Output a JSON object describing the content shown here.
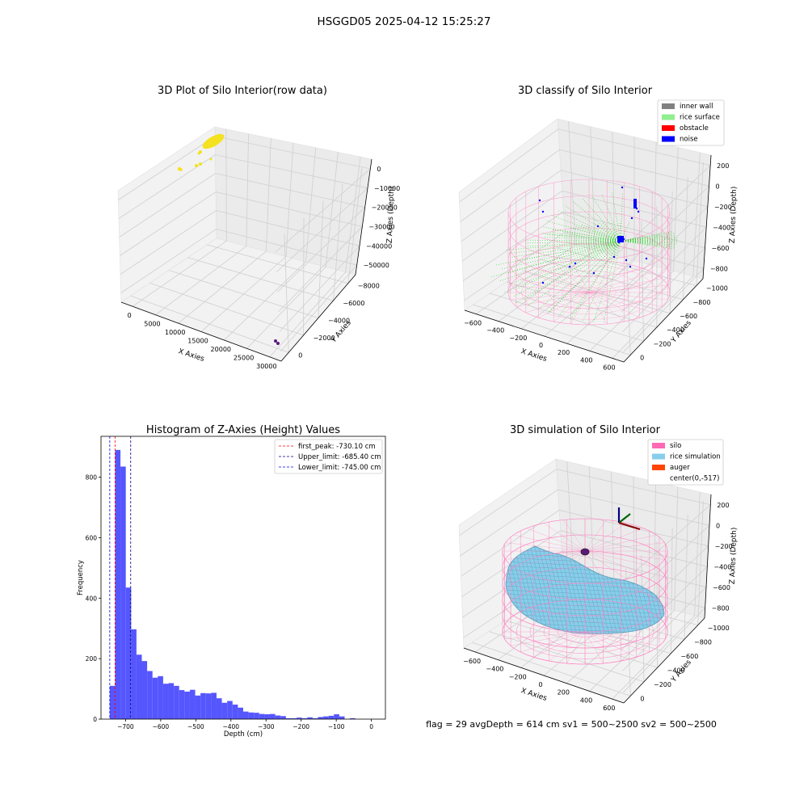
{
  "suptitle": "HSGGD05 2025-04-12 15:25:27",
  "chart_data": [
    {
      "type": "scatter",
      "title": "3D Plot of Silo Interior(row data)",
      "xlabel": "X Axies",
      "ylabel": "Y Axies",
      "zlabel": "Z Axies (Depth)",
      "x_ticks": [
        "0",
        "5000",
        "10000",
        "15000",
        "20000",
        "25000",
        "30000"
      ],
      "y_ticks": [
        "0",
        "−2000",
        "−4000",
        "−6000",
        "−8000"
      ],
      "z_ticks": [
        "0",
        "−10000",
        "−20000",
        "−30000",
        "−40000",
        "−50000"
      ],
      "colors": {
        "main": "#f4e11f",
        "outlier": "#5b1a7a"
      }
    },
    {
      "type": "scatter",
      "title": "3D classify of Silo Interior",
      "xlabel": "X Axies",
      "ylabel": "Y Axies",
      "zlabel": "Z Axies (Depth)",
      "x_ticks": [
        "−600",
        "−400",
        "−200",
        "0",
        "200",
        "400",
        "600"
      ],
      "y_ticks": [
        "0",
        "−200",
        "−400",
        "−600",
        "−800",
        "−1000"
      ],
      "z_ticks": [
        "200",
        "0",
        "−200",
        "−400",
        "−600",
        "−800"
      ],
      "legend": [
        {
          "label": "inner wall",
          "color": "#808080"
        },
        {
          "label": "rice surface",
          "color": "#90ee90"
        },
        {
          "label": "obstacle",
          "color": "#ff0000"
        },
        {
          "label": "noise",
          "color": "#0000ff"
        }
      ]
    },
    {
      "type": "bar",
      "title": "Histogram of Z-Axies (Height) Values",
      "xlabel": "Depth (cm)",
      "ylabel": "Frequency",
      "xlim": [
        -770,
        40
      ],
      "ylim": [
        0,
        935
      ],
      "x_ticks": [
        -700,
        -600,
        -500,
        -400,
        -300,
        -200,
        -100,
        0
      ],
      "x_tick_labels": [
        "−700",
        "−600",
        "−500",
        "−400",
        "−300",
        "−200",
        "−100",
        "0"
      ],
      "y_ticks": [
        0,
        200,
        400,
        600,
        800
      ],
      "bin_start": -745,
      "bin_width": 15.2,
      "values": [
        110,
        890,
        835,
        435,
        297,
        213,
        192,
        159,
        137,
        142,
        117,
        119,
        110,
        96,
        91,
        97,
        78,
        86,
        85,
        87,
        69,
        54,
        60,
        48,
        38,
        25,
        22,
        21,
        17,
        16,
        17,
        12,
        10,
        3,
        3,
        5,
        3,
        6,
        3,
        7,
        9,
        11,
        16,
        9,
        0,
        3
      ],
      "bar_color": "#4d4dff",
      "vlines": [
        {
          "label": "first_peak: -730.10 cm",
          "x": -730.1,
          "color": "#ff0000"
        },
        {
          "label": "Upper_limit: -685.40 cm",
          "x": -685.4,
          "color": "#000080"
        },
        {
          "label": "Lower_limit: -745.00 cm",
          "x": -745.0,
          "color": "#0000ff"
        }
      ]
    },
    {
      "type": "surface",
      "title": "3D simulation of Silo Interior",
      "xlabel": "X Axies",
      "ylabel": "Y Axies",
      "zlabel": "Z Axies (Depth)",
      "x_ticks": [
        "−600",
        "−400",
        "−200",
        "0",
        "200",
        "400",
        "600"
      ],
      "y_ticks": [
        "0",
        "−200",
        "−400",
        "−600",
        "−800",
        "−1000"
      ],
      "z_ticks": [
        "200",
        "0",
        "−200",
        "−400",
        "−600",
        "−800"
      ],
      "legend": [
        {
          "label": "silo",
          "color": "#ff69b4"
        },
        {
          "label": "rice simulation",
          "color": "#87ceeb"
        },
        {
          "label": "auger",
          "color": "#ff4500"
        },
        {
          "label": "center(0,-517)",
          "color": ""
        }
      ]
    }
  ],
  "footer": "flag = 29  avgDepth = 614 cm  sv1 = 500~2500  sv2 = 500~2500"
}
